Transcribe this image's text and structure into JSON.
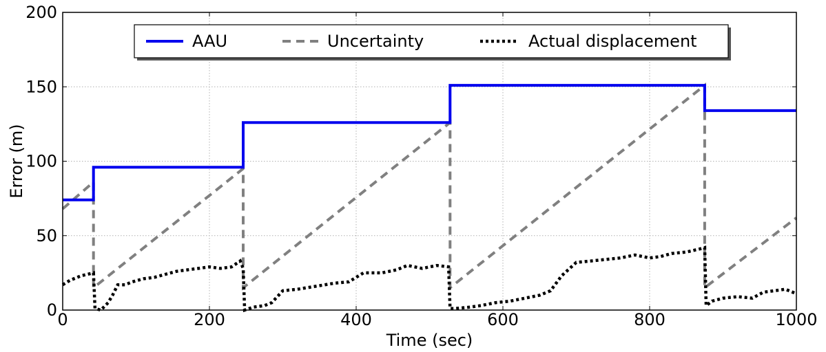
{
  "chart_data": {
    "type": "line",
    "xlabel": "Time (sec)",
    "ylabel": "Error (m)",
    "xlim": [
      0,
      1000
    ],
    "ylim": [
      0,
      200
    ],
    "xticks": [
      0,
      200,
      400,
      600,
      800,
      1000
    ],
    "yticks": [
      0,
      50,
      100,
      150,
      200
    ],
    "grid": true,
    "legend_position": "top-center",
    "series": [
      {
        "name": "AAU",
        "style": "solid",
        "color": "#0000ee",
        "x": [
          0,
          42,
          42,
          246,
          246,
          528,
          528,
          875,
          875,
          1000
        ],
        "y": [
          74,
          74,
          96,
          96,
          126,
          126,
          151,
          151,
          134,
          134
        ]
      },
      {
        "name": "Uncertainty",
        "style": "dashed",
        "color": "#808080",
        "x": [
          0,
          42,
          42,
          246,
          246,
          528,
          528,
          875,
          875,
          1000
        ],
        "y": [
          68,
          86,
          15,
          95,
          15,
          126,
          15,
          151,
          15,
          62
        ]
      },
      {
        "name": "Actual displacement",
        "style": "dotted",
        "color": "#000000",
        "x": [
          0,
          10,
          25,
          42,
          44,
          52,
          62,
          68,
          75,
          85,
          95,
          110,
          125,
          140,
          155,
          170,
          185,
          200,
          215,
          230,
          242,
          246,
          248,
          260,
          275,
          285,
          300,
          320,
          345,
          370,
          390,
          410,
          435,
          455,
          470,
          490,
          510,
          526,
          528,
          535,
          555,
          570,
          590,
          610,
          630,
          650,
          665,
          680,
          700,
          720,
          740,
          760,
          780,
          800,
          815,
          830,
          850,
          868,
          875,
          877,
          885,
          900,
          920,
          940,
          955,
          970,
          985,
          1000
        ],
        "y": [
          17,
          20,
          23,
          25,
          1,
          0,
          5,
          10,
          17,
          17,
          19,
          21,
          22,
          24,
          26,
          27,
          28,
          29,
          28,
          29,
          33,
          28,
          0,
          2,
          3,
          5,
          13,
          14,
          16,
          18,
          19,
          25,
          25,
          27,
          30,
          28,
          30,
          29,
          1,
          1,
          2,
          3,
          5,
          6,
          8,
          10,
          13,
          23,
          32,
          33,
          34,
          35,
          37,
          35,
          36,
          38,
          39,
          41,
          42,
          3,
          6,
          8,
          9,
          8,
          12,
          13,
          14,
          11
        ]
      }
    ]
  }
}
